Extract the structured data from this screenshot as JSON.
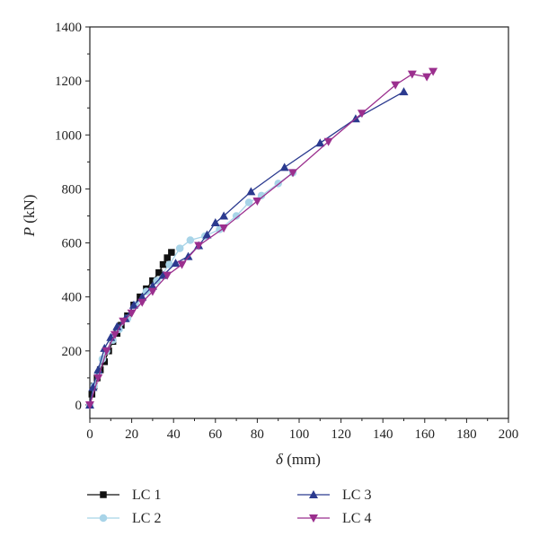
{
  "chart_data": {
    "type": "line",
    "xlabel": {
      "symbol": "δ",
      "unit": " (mm)"
    },
    "ylabel": {
      "symbol": "P",
      "unit": " (kN)"
    },
    "xlim": [
      0,
      200
    ],
    "ylim": [
      -50,
      1400
    ],
    "xticks": [
      0,
      20,
      40,
      60,
      80,
      100,
      120,
      140,
      160,
      180,
      200
    ],
    "yticks": [
      0,
      200,
      400,
      600,
      800,
      1000,
      1200,
      1400
    ],
    "grid": false,
    "legend": "bottom",
    "series": [
      {
        "name": "LC 1",
        "color": "#111111",
        "marker": "square",
        "x": [
          0,
          1,
          2,
          3.5,
          5,
          7,
          9,
          11,
          13,
          15,
          18,
          21,
          24,
          27,
          30,
          33,
          35,
          37,
          39
        ],
        "y": [
          0,
          40,
          70,
          100,
          130,
          160,
          200,
          235,
          265,
          295,
          330,
          370,
          400,
          430,
          460,
          490,
          520,
          545,
          565
        ]
      },
      {
        "name": "LC 2",
        "color": "#a8d4e8",
        "marker": "circle",
        "x": [
          0,
          2,
          4,
          6,
          8,
          11,
          14,
          18,
          22,
          27,
          32,
          38,
          43,
          48,
          55,
          62,
          70,
          76,
          82,
          90,
          97
        ],
        "y": [
          0,
          70,
          120,
          170,
          200,
          240,
          280,
          320,
          370,
          420,
          460,
          520,
          580,
          610,
          625,
          650,
          700,
          750,
          775,
          820,
          860
        ]
      },
      {
        "name": "LC 3",
        "color": "#2b3a8f",
        "marker": "triangle-up",
        "x": [
          0,
          1.5,
          4,
          7,
          10,
          13,
          17,
          21,
          25,
          30,
          35,
          41,
          47,
          52,
          56,
          60,
          64,
          77,
          93,
          110,
          127,
          150
        ],
        "y": [
          0,
          65,
          130,
          210,
          250,
          290,
          320,
          370,
          400,
          440,
          480,
          525,
          550,
          590,
          630,
          675,
          700,
          790,
          880,
          970,
          1060,
          1160
        ]
      },
      {
        "name": "LC 4",
        "color": "#9b2f8e",
        "marker": "triangle-down",
        "x": [
          0,
          4,
          8,
          12,
          16,
          20,
          25,
          30,
          37,
          44,
          52,
          64,
          80,
          97,
          114,
          130,
          146,
          154,
          161,
          164
        ],
        "y": [
          0,
          100,
          200,
          260,
          310,
          340,
          380,
          420,
          480,
          520,
          590,
          655,
          755,
          860,
          975,
          1080,
          1185,
          1225,
          1215,
          1235
        ]
      }
    ]
  }
}
